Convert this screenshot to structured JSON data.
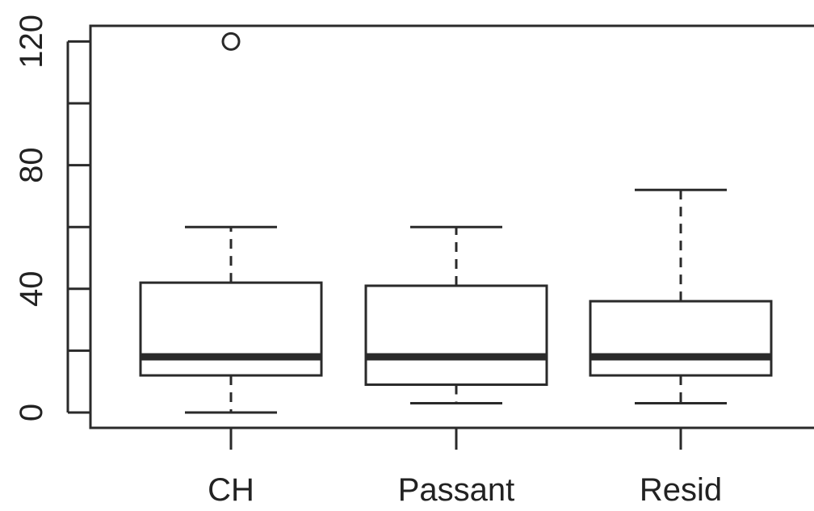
{
  "chart_data": {
    "type": "boxplot",
    "categories": [
      "CH",
      "Passant",
      "Resid"
    ],
    "boxes": [
      {
        "category": "CH",
        "whisker_low": 0,
        "q1": 12,
        "median": 18,
        "q3": 42,
        "whisker_high": 60,
        "outliers": [
          120
        ]
      },
      {
        "category": "Passant",
        "whisker_low": 3,
        "q1": 9,
        "median": 18,
        "q3": 41,
        "whisker_high": 60,
        "outliers": []
      },
      {
        "category": "Resid",
        "whisker_low": 3,
        "q1": 12,
        "median": 18,
        "q3": 36,
        "whisker_high": 72,
        "outliers": []
      }
    ],
    "y_ticks": [
      0,
      20,
      40,
      60,
      80,
      100,
      120
    ],
    "y_tick_labels": [
      "0",
      "",
      "40",
      "",
      "80",
      "",
      "120"
    ],
    "ylim": [
      -5,
      125
    ],
    "title": "",
    "xlabel": "",
    "ylabel": "",
    "grid": false,
    "colors": {
      "line": "#2a2a2a",
      "box_fill": "#ffffff"
    }
  }
}
